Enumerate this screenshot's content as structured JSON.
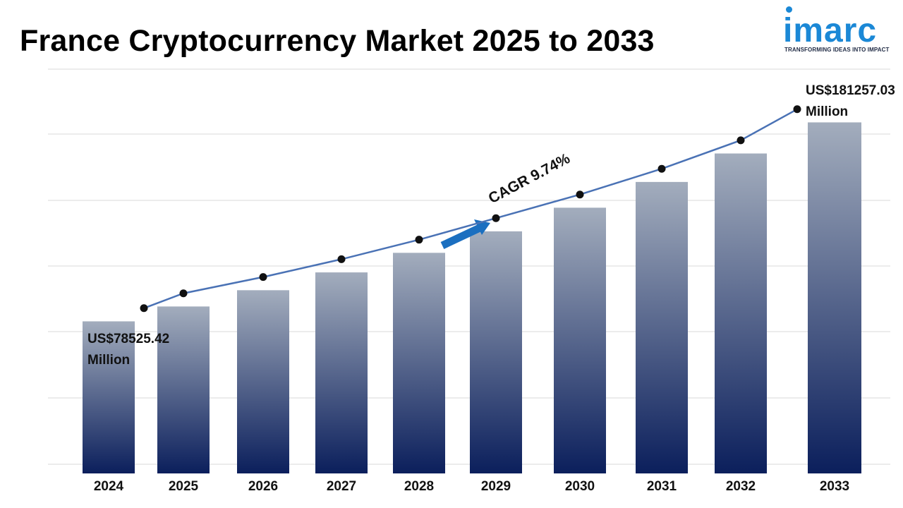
{
  "header": {
    "title": "France Cryptocurrency Market 2025 to 2033"
  },
  "logo": {
    "name": "imarc",
    "tagline": "TRANSFORMING IDEAS INTO IMPACT",
    "color": "#1b88d6"
  },
  "annotations": {
    "start_value": "US$78525.42",
    "start_unit": "Million",
    "end_value": "US$181257.03",
    "end_unit": "Million",
    "cagr": "CAGR 9.74%"
  },
  "chart_data": {
    "type": "bar",
    "categories": [
      "2024",
      "2025",
      "2026",
      "2027",
      "2028",
      "2029",
      "2030",
      "2031",
      "2032",
      "2033"
    ],
    "values": [
      78525.42,
      86200,
      94600,
      103800,
      113900,
      125000,
      137200,
      150500,
      165200,
      181257.03
    ],
    "line_values": [
      78525.42,
      86200,
      94600,
      103800,
      113900,
      125000,
      137200,
      150500,
      165200,
      181257.03
    ],
    "ylim": [
      0,
      200000
    ],
    "grid": true,
    "xlabel": "",
    "ylabel": "",
    "bar_gradient": [
      "#a3adbd",
      "#0b1f5c"
    ],
    "line_color": "#4a72b5",
    "arrow_color": "#1b6fc0"
  }
}
